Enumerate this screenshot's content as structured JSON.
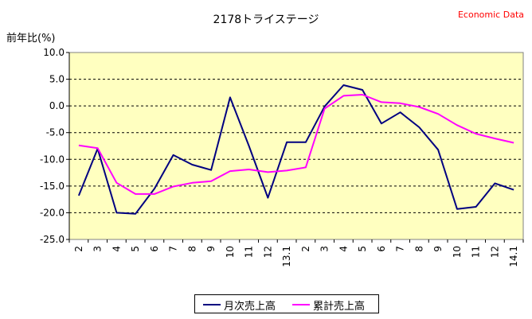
{
  "chart_data": {
    "type": "line",
    "title": "2178トライステージ",
    "source": "Economic Data",
    "ylabel": "前年比(%)",
    "xlabel": "",
    "ylim": [
      -25,
      10
    ],
    "yticks": [
      "10.0",
      "5.0",
      "0.0",
      "-5.0",
      "-10.0",
      "-15.0",
      "-20.0",
      "-25.0"
    ],
    "ytick_values": [
      10,
      5,
      0,
      -5,
      -10,
      -15,
      -20,
      -25
    ],
    "grid": "horizontal dashed",
    "legend_position": "bottom",
    "categories": [
      "2",
      "3",
      "4",
      "5",
      "6",
      "7",
      "8",
      "9",
      "10",
      "11",
      "12",
      "13.1",
      "2",
      "3",
      "4",
      "5",
      "6",
      "7",
      "8",
      "9",
      "10",
      "11",
      "12",
      "14.1"
    ],
    "series": [
      {
        "name": "月次売上高",
        "color": "#000080",
        "values": [
          -16.8,
          -8.0,
          -20.0,
          -20.2,
          -15.5,
          -9.2,
          -11.0,
          -12.0,
          1.6,
          -7.5,
          -17.2,
          -6.8,
          -6.8,
          -0.1,
          3.9,
          3.0,
          -3.3,
          -1.2,
          -4.0,
          -8.2,
          -19.3,
          -18.9,
          -14.5,
          -15.7
        ]
      },
      {
        "name": "累計売上高",
        "color": "#ff00ff",
        "values": [
          -7.4,
          -7.9,
          -14.4,
          -16.5,
          -16.5,
          -15.1,
          -14.4,
          -14.1,
          -12.2,
          -11.9,
          -12.4,
          -12.1,
          -11.5,
          -0.5,
          1.9,
          2.1,
          0.7,
          0.5,
          -0.2,
          -1.5,
          -3.6,
          -5.2,
          -6.1,
          -6.9
        ]
      }
    ]
  }
}
